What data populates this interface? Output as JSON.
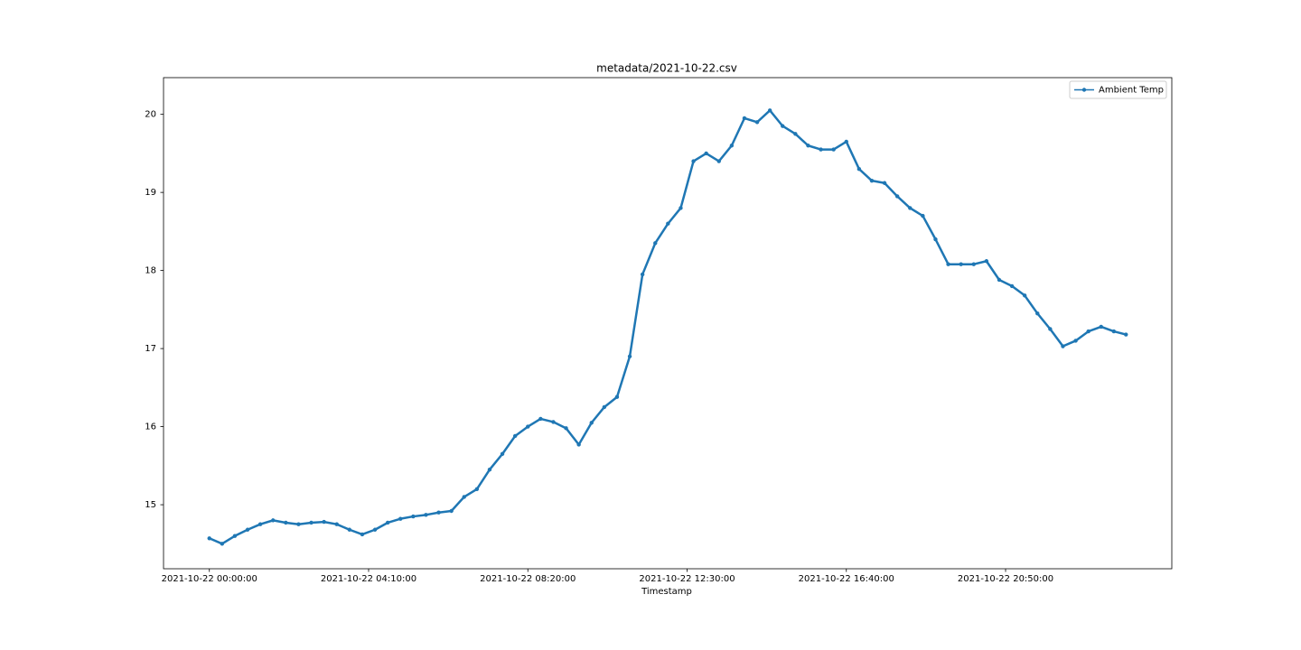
{
  "chart_data": {
    "type": "line",
    "title": "metadata/2021-10-22.csv",
    "xlabel": "Timestamp",
    "x": [
      "2021-10-22 00:00:00",
      "2021-10-22 00:20:00",
      "2021-10-22 00:40:00",
      "2021-10-22 01:00:00",
      "2021-10-22 01:20:00",
      "2021-10-22 01:40:00",
      "2021-10-22 02:00:00",
      "2021-10-22 02:20:00",
      "2021-10-22 02:40:00",
      "2021-10-22 03:00:00",
      "2021-10-22 03:20:00",
      "2021-10-22 03:40:00",
      "2021-10-22 04:00:00",
      "2021-10-22 04:20:00",
      "2021-10-22 04:40:00",
      "2021-10-22 05:00:00",
      "2021-10-22 05:20:00",
      "2021-10-22 05:40:00",
      "2021-10-22 06:00:00",
      "2021-10-22 06:20:00",
      "2021-10-22 06:40:00",
      "2021-10-22 07:00:00",
      "2021-10-22 07:20:00",
      "2021-10-22 07:40:00",
      "2021-10-22 08:00:00",
      "2021-10-22 08:20:00",
      "2021-10-22 08:40:00",
      "2021-10-22 09:00:00",
      "2021-10-22 09:20:00",
      "2021-10-22 09:40:00",
      "2021-10-22 10:00:00",
      "2021-10-22 10:20:00",
      "2021-10-22 10:40:00",
      "2021-10-22 11:00:00",
      "2021-10-22 11:20:00",
      "2021-10-22 11:40:00",
      "2021-10-22 12:00:00",
      "2021-10-22 12:20:00",
      "2021-10-22 12:40:00",
      "2021-10-22 13:00:00",
      "2021-10-22 13:20:00",
      "2021-10-22 13:40:00",
      "2021-10-22 14:00:00",
      "2021-10-22 14:20:00",
      "2021-10-22 14:40:00",
      "2021-10-22 15:00:00",
      "2021-10-22 15:20:00",
      "2021-10-22 15:40:00",
      "2021-10-22 16:00:00",
      "2021-10-22 16:20:00",
      "2021-10-22 16:40:00",
      "2021-10-22 17:00:00",
      "2021-10-22 17:20:00",
      "2021-10-22 17:40:00",
      "2021-10-22 18:00:00",
      "2021-10-22 18:20:00",
      "2021-10-22 18:40:00",
      "2021-10-22 19:00:00",
      "2021-10-22 19:20:00",
      "2021-10-22 19:40:00",
      "2021-10-22 20:00:00",
      "2021-10-22 20:20:00",
      "2021-10-22 20:40:00",
      "2021-10-22 21:00:00",
      "2021-10-22 21:20:00",
      "2021-10-22 21:40:00",
      "2021-10-22 22:00:00",
      "2021-10-22 22:20:00",
      "2021-10-22 22:40:00",
      "2021-10-22 23:00:00",
      "2021-10-22 23:20:00",
      "2021-10-22 23:40:00",
      "2021-10-22 23:59:00"
    ],
    "series": [
      {
        "name": "Ambient Temp",
        "color": "#1f77b4",
        "values": [
          14.57,
          14.5,
          14.6,
          14.68,
          14.75,
          14.8,
          14.77,
          14.75,
          14.77,
          14.78,
          14.75,
          14.68,
          14.62,
          14.68,
          14.77,
          14.82,
          14.85,
          14.87,
          14.9,
          14.92,
          15.1,
          15.2,
          15.45,
          15.65,
          15.88,
          16.0,
          16.1,
          16.06,
          15.98,
          15.77,
          16.05,
          16.25,
          16.38,
          16.9,
          17.95,
          18.35,
          18.6,
          18.8,
          19.4,
          19.5,
          19.4,
          19.6,
          19.95,
          19.9,
          20.05,
          19.85,
          19.75,
          19.6,
          19.55,
          19.55,
          19.65,
          19.3,
          19.15,
          19.12,
          18.95,
          18.8,
          18.7,
          18.4,
          18.08,
          18.08,
          18.08,
          18.12,
          17.88,
          17.8,
          17.68,
          17.45,
          17.25,
          17.03,
          17.1,
          17.22,
          17.28,
          17.22,
          17.18
        ]
      }
    ],
    "ylim": [
      14.18,
      20.47
    ],
    "yticks": [
      15,
      16,
      17,
      18,
      19,
      20
    ],
    "xticks": [
      "2021-10-22 00:00:00",
      "2021-10-22 04:10:00",
      "2021-10-22 08:20:00",
      "2021-10-22 12:30:00",
      "2021-10-22 16:40:00",
      "2021-10-22 20:50:00"
    ],
    "legend": "upper right",
    "grid": false
  }
}
